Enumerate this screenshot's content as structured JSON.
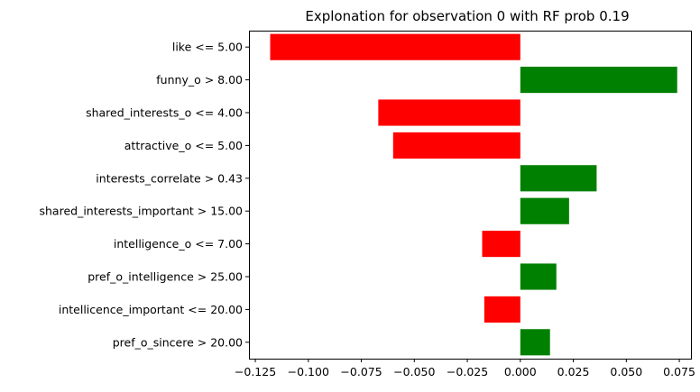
{
  "chart_data": {
    "type": "bar",
    "orientation": "horizontal",
    "title": "Explonation for observation 0 with RF prob 0.19",
    "xlabel": "",
    "ylabel": "",
    "xlim": [
      -0.128,
      0.0805
    ],
    "xticks": [
      -0.125,
      -0.1,
      -0.075,
      -0.05,
      -0.025,
      0.0,
      0.025,
      0.05,
      0.075
    ],
    "xtick_labels": [
      "−0.125",
      "−0.100",
      "−0.075",
      "−0.050",
      "−0.025",
      "0.000",
      "0.025",
      "0.050",
      "0.075"
    ],
    "categories": [
      "like <= 5.00",
      "funny_o > 8.00",
      "shared_interests_o <= 4.00",
      "attractive_o <= 5.00",
      "interests_correlate > 0.43",
      "shared_interests_important > 15.00",
      "intelligence_o <= 7.00",
      "pref_o_intelligence > 25.00",
      "intellicence_important <= 20.00",
      "pref_o_sincere > 20.00"
    ],
    "values": [
      -0.118,
      0.074,
      -0.067,
      -0.06,
      0.036,
      0.023,
      -0.018,
      0.017,
      -0.017,
      0.014
    ],
    "colors": {
      "positive": "#008000",
      "negative": "#ff0000"
    },
    "grid": false,
    "legend": "none"
  }
}
